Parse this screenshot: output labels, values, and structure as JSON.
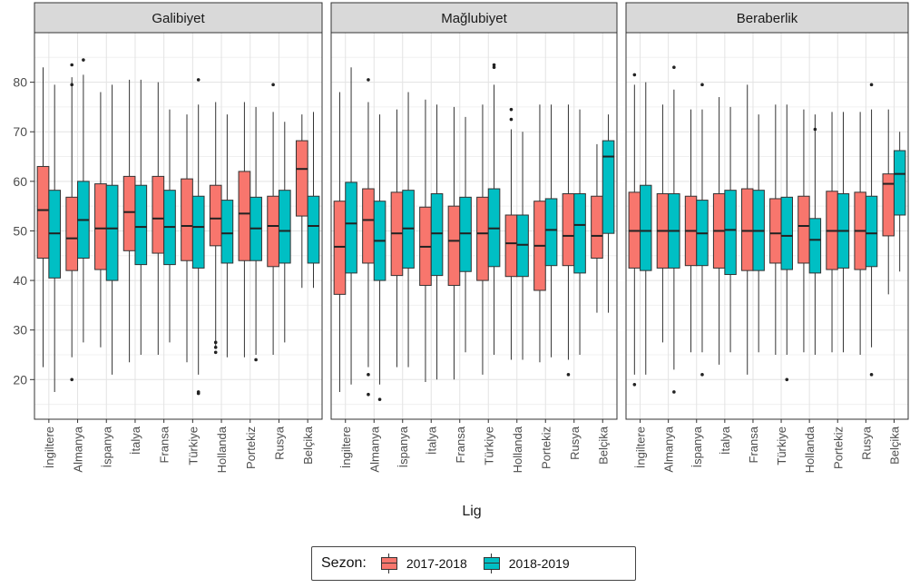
{
  "chart_data": {
    "type": "box",
    "title": "",
    "xlabel": "Lig",
    "ylabel": "",
    "ylim": [
      12,
      90
    ],
    "yticks": [
      20,
      30,
      40,
      50,
      60,
      70,
      80
    ],
    "grid": true,
    "legend_position": "bottom",
    "categories": [
      "İngiltere",
      "Almanya",
      "İspanya",
      "İtalya",
      "Fransa",
      "Türkiye",
      "Hollanda",
      "Portekiz",
      "Rusya",
      "Belçika"
    ],
    "series": [
      {
        "name": "2017-2018",
        "color": "#F8766D"
      },
      {
        "name": "2018-2019",
        "color": "#00BFC4"
      }
    ],
    "facets": [
      {
        "name": "Galibiyet",
        "boxes": [
          [
            [
              22.5,
              44.5,
              54.2,
              63,
              83
            ],
            [
              17.5,
              40.5,
              49.5,
              58.2,
              79.5
            ]
          ],
          [
            [
              24.5,
              42,
              48.5,
              56.8,
              81
            ],
            [
              27.5,
              44.5,
              52.2,
              60,
              81.5
            ]
          ],
          [
            [
              26.5,
              42.2,
              50.5,
              59.5,
              78
            ],
            [
              21,
              40,
              50.5,
              59.2,
              79.5
            ]
          ],
          [
            [
              23.5,
              46,
              53.8,
              61,
              80.5
            ],
            [
              25,
              43.2,
              50.8,
              59.2,
              80.5
            ]
          ],
          [
            [
              25,
              45.5,
              52.5,
              61,
              80
            ],
            [
              27.5,
              43.2,
              50.8,
              58.2,
              74.5
            ]
          ],
          [
            [
              23.5,
              44,
              51,
              60.5,
              73.5
            ],
            [
              21,
              42.5,
              50.8,
              57,
              75.5
            ]
          ],
          [
            [
              26.5,
              47,
              52.5,
              59.2,
              76
            ],
            [
              24.5,
              43.5,
              49.5,
              56.2,
              73.5
            ]
          ],
          [
            [
              24.5,
              44,
              53.5,
              62,
              76
            ],
            [
              25,
              44,
              50.5,
              56.8,
              75
            ]
          ],
          [
            [
              25,
              42.8,
              51,
              57,
              74
            ],
            [
              27.5,
              43.5,
              50,
              58.2,
              72
            ]
          ],
          [
            [
              38.5,
              53,
              62.5,
              68.2,
              73.5
            ],
            [
              38.5,
              43.5,
              51,
              57,
              74
            ]
          ]
        ],
        "outliers": [
          [
            [],
            []
          ],
          [
            [
              20,
              79.5,
              83.5
            ],
            [
              84.5
            ]
          ],
          [
            [],
            []
          ],
          [
            [],
            []
          ],
          [
            [],
            []
          ],
          [
            [],
            [
              17.5,
              17.2,
              80.5
            ]
          ],
          [
            [
              25.5,
              26.5,
              27.5
            ],
            []
          ],
          [
            [],
            [
              24
            ]
          ],
          [
            [
              79.5
            ],
            []
          ],
          [
            [],
            []
          ]
        ]
      },
      {
        "name": "Mağlubiyet",
        "boxes": [
          [
            [
              17.5,
              37.2,
              46.8,
              56,
              78
            ],
            [
              19,
              41.5,
              51.5,
              59.8,
              83
            ]
          ],
          [
            [
              22.5,
              43.5,
              52.2,
              58.5,
              76
            ],
            [
              19,
              40,
              48,
              56,
              73.5
            ]
          ],
          [
            [
              22.5,
              41,
              49.5,
              57.8,
              74.5
            ],
            [
              22.5,
              42.5,
              50.5,
              58.2,
              78
            ]
          ],
          [
            [
              19.5,
              39,
              46.8,
              54.8,
              76.5
            ],
            [
              20,
              41,
              49.5,
              57.5,
              75.5
            ]
          ],
          [
            [
              20,
              39,
              48,
              55,
              75
            ],
            [
              25.5,
              41.8,
              49.5,
              56.8,
              73
            ]
          ],
          [
            [
              21,
              40,
              49.5,
              56.8,
              75.5
            ],
            [
              25,
              42.8,
              50.5,
              58.5,
              79.5
            ]
          ],
          [
            [
              24,
              40.8,
              47.5,
              53.2,
              70.5
            ],
            [
              24,
              40.8,
              47.2,
              53.2,
              70
            ]
          ],
          [
            [
              23.5,
              38,
              47,
              56,
              75.5
            ],
            [
              24.5,
              43,
              50.2,
              56.5,
              75.5
            ]
          ],
          [
            [
              24,
              43,
              49,
              57.5,
              75.5
            ],
            [
              25,
              41.5,
              51.2,
              57.5,
              74.5
            ]
          ],
          [
            [
              33.5,
              44.5,
              49,
              57,
              67.5
            ],
            [
              33.5,
              49.5,
              65,
              68.2,
              73.5
            ]
          ]
        ],
        "outliers": [
          [
            [],
            []
          ],
          [
            [
              17,
              21,
              80.5
            ],
            [
              16
            ]
          ],
          [
            [],
            []
          ],
          [
            [],
            []
          ],
          [
            [],
            []
          ],
          [
            [],
            [
              83,
              83.5
            ]
          ],
          [
            [
              72.5,
              74.5
            ],
            []
          ],
          [
            [],
            []
          ],
          [
            [
              21
            ],
            []
          ],
          [
            [],
            []
          ]
        ]
      },
      {
        "name": "Beraberlik",
        "boxes": [
          [
            [
              21,
              42.5,
              50,
              57.8,
              79.5
            ],
            [
              21,
              42,
              50,
              59.2,
              80
            ]
          ],
          [
            [
              27.5,
              42.5,
              50,
              57.5,
              75.5
            ],
            [
              22,
              42.5,
              50,
              57.5,
              78.5
            ]
          ],
          [
            [
              25.5,
              43,
              50,
              57,
              74.5
            ],
            [
              25.5,
              43,
              49.5,
              56.2,
              74.5
            ]
          ],
          [
            [
              23,
              42.5,
              50,
              57.5,
              77
            ],
            [
              25.5,
              41.2,
              50.2,
              58.2,
              75
            ]
          ],
          [
            [
              21,
              42,
              50,
              58.5,
              79.5
            ],
            [
              25.5,
              42,
              50,
              58.2,
              73.5
            ]
          ],
          [
            [
              25,
              43.5,
              49.5,
              56.5,
              75.5
            ],
            [
              25,
              42.2,
              49,
              56.8,
              75.5
            ]
          ],
          [
            [
              25.5,
              43.5,
              51,
              57,
              74.5
            ],
            [
              25,
              41.5,
              48.2,
              52.5,
              73.5
            ]
          ],
          [
            [
              25.5,
              42.2,
              50,
              58,
              74
            ],
            [
              25.5,
              42.5,
              50,
              57.5,
              74
            ]
          ],
          [
            [
              25,
              42.2,
              50,
              57.8,
              74
            ],
            [
              26.5,
              42.8,
              49.5,
              57,
              74.5
            ]
          ],
          [
            [
              37.2,
              49,
              59.5,
              61.5,
              74.5
            ],
            [
              41.8,
              53.2,
              61.5,
              66.2,
              70
            ]
          ]
        ],
        "outliers": [
          [
            [
              19,
              81.5
            ],
            []
          ],
          [
            [],
            [
              17.5,
              83
            ]
          ],
          [
            [],
            [
              21,
              79.5
            ]
          ],
          [
            [],
            []
          ],
          [
            [],
            []
          ],
          [
            [],
            [
              20
            ]
          ],
          [
            [],
            [
              70.5
            ]
          ],
          [
            [],
            []
          ],
          [
            [],
            [
              21,
              79.5
            ]
          ],
          [
            [],
            []
          ]
        ]
      }
    ]
  },
  "legend": {
    "title": "Sezon:",
    "items": [
      "2017-2018",
      "2018-2019"
    ]
  }
}
